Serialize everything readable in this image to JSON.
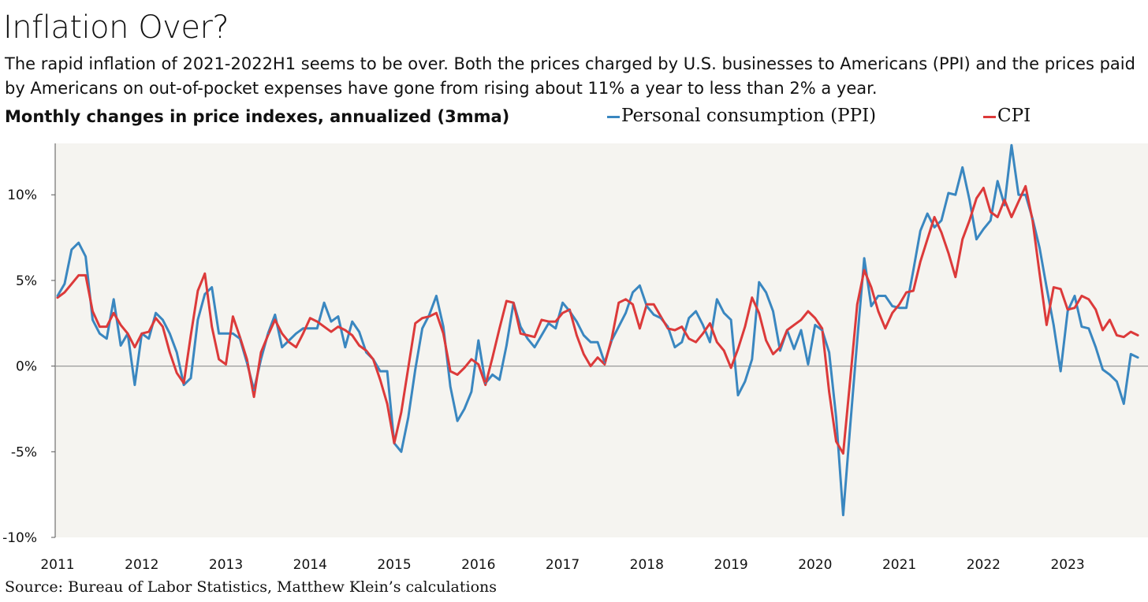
{
  "header": {
    "title": "Inflation Over?",
    "subtitle": "The rapid inflation of 2021-2022H1 seems to be over. Both the prices charged by U.S. businesses to Americans (PPI) and the prices paid by Americans on out-of-pocket expenses have gone from rising about 11% a year to less than 2% a year.",
    "chart_heading": "Monthly changes in price indexes, annualized (3mma)",
    "source": "Source: Bureau of Labor Statistics, Matthew Klein’s calculations"
  },
  "legend": {
    "ppi": "Personal consumption (PPI)",
    "cpi": "CPI"
  },
  "colors": {
    "ppi": "#3a87c0",
    "cpi": "#dc3a3a",
    "plot_background": "#f5f4f0",
    "zero_line": "#999999"
  },
  "chart_data": {
    "type": "line",
    "x_start": "2011-01",
    "x_frequency": "monthly",
    "ylim": [
      -10,
      13
    ],
    "yticks": [
      10,
      5,
      0,
      -5,
      -10
    ],
    "ytick_labels": [
      "10%",
      "5%",
      "0%",
      "-5%",
      "-10%"
    ],
    "xtick_labels": [
      "2011",
      "2012",
      "2013",
      "2014",
      "2015",
      "2016",
      "2017",
      "2018",
      "2019",
      "2020",
      "2021",
      "2022",
      "2023"
    ],
    "grid": false,
    "series": [
      {
        "name": "Personal consumption (PPI)",
        "color": "#3a87c0",
        "values": [
          4.1,
          4.8,
          6.8,
          7.2,
          6.4,
          2.7,
          1.9,
          1.6,
          3.9,
          1.2,
          1.9,
          -1.1,
          1.9,
          1.6,
          3.1,
          2.7,
          1.9,
          0.8,
          -1.1,
          -0.7,
          2.7,
          4.2,
          4.6,
          1.9,
          1.9,
          1.9,
          1.6,
          0.2,
          -1.4,
          0.4,
          1.9,
          3.0,
          1.1,
          1.5,
          1.9,
          2.2,
          2.2,
          2.2,
          3.7,
          2.6,
          2.9,
          1.1,
          2.6,
          2.0,
          0.8,
          0.4,
          -0.3,
          -0.3,
          -4.5,
          -5.0,
          -3.0,
          -0.2,
          2.2,
          3.0,
          4.1,
          2.3,
          -1.2,
          -3.2,
          -2.5,
          -1.5,
          1.5,
          -1.0,
          -0.5,
          -0.8,
          1.2,
          3.7,
          2.3,
          1.6,
          1.1,
          1.8,
          2.5,
          2.2,
          3.7,
          3.2,
          2.6,
          1.8,
          1.4,
          1.4,
          0.2,
          1.5,
          2.3,
          3.1,
          4.3,
          4.7,
          3.5,
          3.0,
          2.8,
          2.3,
          1.1,
          1.4,
          2.8,
          3.2,
          2.4,
          1.4,
          3.9,
          3.1,
          2.7,
          -1.7,
          -0.9,
          0.4,
          4.9,
          4.3,
          3.2,
          0.9,
          2.1,
          1.0,
          2.1,
          0.1,
          2.4,
          2.1,
          0.8,
          -3.0,
          -8.7,
          -3.5,
          1.5,
          6.3,
          3.5,
          4.1,
          4.1,
          3.5,
          3.4,
          3.4,
          5.6,
          7.9,
          8.9,
          8.1,
          8.5,
          10.1,
          10.0,
          11.6,
          9.7,
          7.4,
          8.0,
          8.5,
          10.8,
          9.4,
          12.9,
          10.0,
          10.0,
          8.6,
          6.9,
          4.6,
          2.4,
          -0.3,
          3.2,
          4.1,
          2.3,
          2.2,
          1.1,
          -0.2,
          -0.5,
          -0.9,
          -2.2,
          0.7,
          0.5
        ]
      },
      {
        "name": "CPI",
        "color": "#dc3a3a",
        "values": [
          4.0,
          4.3,
          4.8,
          5.3,
          5.3,
          3.2,
          2.3,
          2.3,
          3.1,
          2.4,
          1.9,
          1.1,
          1.9,
          2.0,
          2.8,
          2.3,
          0.8,
          -0.4,
          -1.0,
          1.8,
          4.4,
          5.4,
          2.3,
          0.4,
          0.1,
          2.9,
          1.7,
          0.4,
          -1.8,
          0.8,
          1.8,
          2.7,
          1.9,
          1.4,
          1.1,
          1.9,
          2.8,
          2.6,
          2.3,
          2.0,
          2.3,
          2.1,
          1.8,
          1.2,
          0.9,
          0.4,
          -0.8,
          -2.2,
          -4.5,
          -2.7,
          -0.1,
          2.5,
          2.8,
          2.9,
          3.1,
          1.9,
          -0.3,
          -0.5,
          -0.1,
          0.4,
          0.1,
          -1.1,
          0.5,
          2.2,
          3.8,
          3.7,
          1.9,
          1.8,
          1.7,
          2.7,
          2.6,
          2.6,
          3.1,
          3.3,
          1.8,
          0.7,
          0.0,
          0.5,
          0.1,
          1.6,
          3.7,
          3.9,
          3.6,
          2.2,
          3.6,
          3.6,
          2.9,
          2.2,
          2.1,
          2.3,
          1.6,
          1.4,
          1.9,
          2.5,
          1.4,
          0.9,
          -0.1,
          1.0,
          2.3,
          4.0,
          3.1,
          1.5,
          0.7,
          1.1,
          2.1,
          2.4,
          2.7,
          3.2,
          2.8,
          2.2,
          -1.5,
          -4.4,
          -5.1,
          -0.8,
          3.6,
          5.6,
          4.6,
          3.2,
          2.2,
          3.1,
          3.6,
          4.3,
          4.4,
          6.1,
          7.4,
          8.7,
          7.8,
          6.6,
          5.2,
          7.4,
          8.5,
          9.8,
          10.4,
          9.0,
          8.7,
          9.7,
          8.7,
          9.6,
          10.5,
          8.5,
          5.4,
          2.4,
          4.6,
          4.5,
          3.3,
          3.4,
          4.1,
          3.9,
          3.3,
          2.1,
          2.7,
          1.8,
          1.7,
          2.0,
          1.8
        ]
      }
    ]
  }
}
